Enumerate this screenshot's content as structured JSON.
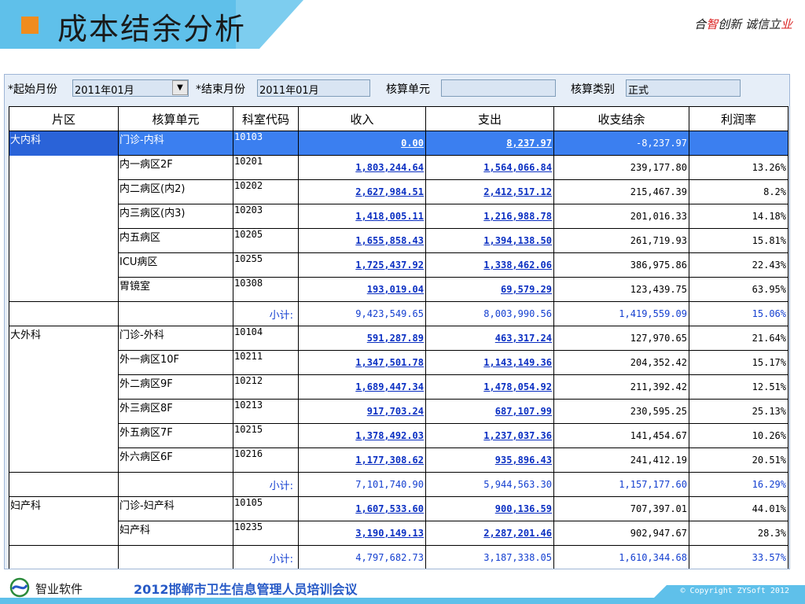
{
  "slide": {
    "title": "成本结余分析",
    "slogan_parts": [
      "合",
      "智",
      "创新 诚信立",
      "业"
    ]
  },
  "filters": {
    "start_label": "*起始月份",
    "start_value": "2011年01月",
    "end_label": "*结束月份",
    "end_value": "2011年01月",
    "unit_label": "核算单元",
    "unit_value": "",
    "category_label": "核算类别",
    "category_value": "正式",
    "dropdown_icon": "chevron-down-icon"
  },
  "table": {
    "headers": [
      "片区",
      "核算单元",
      "科室代码",
      "收入",
      "支出",
      "收支结余",
      "利润率"
    ],
    "rows": [
      {
        "area": "大内科",
        "unit": "门诊-内科",
        "code": "10103",
        "income": "0.00",
        "expense": "8,237.97",
        "balance": "-8,237.97",
        "rate": ""
      },
      {
        "area": "",
        "unit": "内一病区2F",
        "code": "10201",
        "income": "1,803,244.64",
        "expense": "1,564,066.84",
        "balance": "239,177.80",
        "rate": "13.26%"
      },
      {
        "area": "",
        "unit": "内二病区(内2)",
        "code": "10202",
        "income": "2,627,984.51",
        "expense": "2,412,517.12",
        "balance": "215,467.39",
        "rate": "8.2%"
      },
      {
        "area": "",
        "unit": "内三病区(内3)",
        "code": "10203",
        "income": "1,418,005.11",
        "expense": "1,216,988.78",
        "balance": "201,016.33",
        "rate": "14.18%"
      },
      {
        "area": "",
        "unit": "内五病区",
        "code": "10205",
        "income": "1,655,858.43",
        "expense": "1,394,138.50",
        "balance": "261,719.93",
        "rate": "15.81%"
      },
      {
        "area": "",
        "unit": "ICU病区",
        "code": "10255",
        "income": "1,725,437.92",
        "expense": "1,338,462.06",
        "balance": "386,975.86",
        "rate": "22.43%"
      },
      {
        "area": "",
        "unit": "胃镜室",
        "code": "10308",
        "income": "193,019.04",
        "expense": "69,579.29",
        "balance": "123,439.75",
        "rate": "63.95%"
      },
      {
        "subtotal": true,
        "label": "小计:",
        "income": "9,423,549.65",
        "expense": "8,003,990.56",
        "balance": "1,419,559.09",
        "rate": "15.06%"
      },
      {
        "area": "大外科",
        "unit": "门诊-外科",
        "code": "10104",
        "income": "591,287.89",
        "expense": "463,317.24",
        "balance": "127,970.65",
        "rate": "21.64%"
      },
      {
        "area": "",
        "unit": "外一病区10F",
        "code": "10211",
        "income": "1,347,501.78",
        "expense": "1,143,149.36",
        "balance": "204,352.42",
        "rate": "15.17%"
      },
      {
        "area": "",
        "unit": "外二病区9F",
        "code": "10212",
        "income": "1,689,447.34",
        "expense": "1,478,054.92",
        "balance": "211,392.42",
        "rate": "12.51%"
      },
      {
        "area": "",
        "unit": "外三病区8F",
        "code": "10213",
        "income": "917,703.24",
        "expense": "687,107.99",
        "balance": "230,595.25",
        "rate": "25.13%"
      },
      {
        "area": "",
        "unit": "外五病区7F",
        "code": "10215",
        "income": "1,378,492.03",
        "expense": "1,237,037.36",
        "balance": "141,454.67",
        "rate": "10.26%"
      },
      {
        "area": "",
        "unit": "外六病区6F",
        "code": "10216",
        "income": "1,177,308.62",
        "expense": "935,896.43",
        "balance": "241,412.19",
        "rate": "20.51%"
      },
      {
        "subtotal": true,
        "label": "小计:",
        "income": "7,101,740.90",
        "expense": "5,944,563.30",
        "balance": "1,157,177.60",
        "rate": "16.29%"
      },
      {
        "area": "妇产科",
        "unit": "门诊-妇产科",
        "code": "10105",
        "income": "1,607,533.60",
        "expense": "900,136.59",
        "balance": "707,397.01",
        "rate": "44.01%"
      },
      {
        "area": "",
        "unit": "妇产科",
        "code": "10235",
        "income": "3,190,149.13",
        "expense": "2,287,201.46",
        "balance": "902,947.67",
        "rate": "28.3%"
      },
      {
        "subtotal": true,
        "label": "小计:",
        "income": "4,797,682.73",
        "expense": "3,187,338.05",
        "balance": "1,610,344.68",
        "rate": "33.57%"
      }
    ],
    "selected_row": 0
  },
  "footer": {
    "company": "智业软件",
    "event": "2012邯郸市卫生信息管理人员培训会议",
    "copyright": "© Copyright ZYSoft 2012"
  },
  "colors": {
    "accent_blue": "#5fc0ea",
    "title_square": "#f08c1e",
    "link_blue": "#0a2fc2",
    "selected_row": "#3b7ff0"
  }
}
